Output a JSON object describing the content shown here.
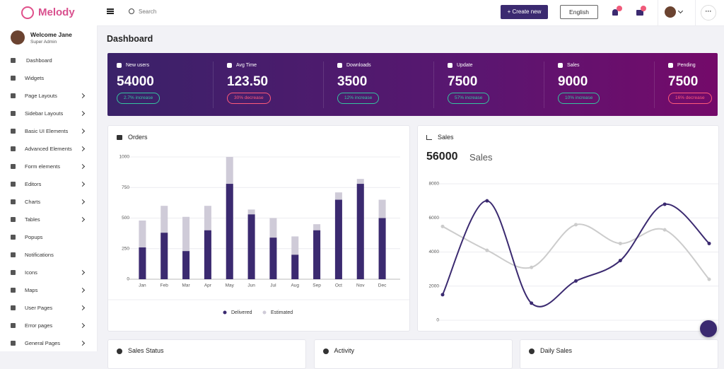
{
  "brand": "Melody",
  "topbar": {
    "search": "Search",
    "create": "+ Create new",
    "language": "English"
  },
  "user": {
    "greeting": "Welcome Jane",
    "role": "Super Admin"
  },
  "menu": [
    {
      "label": "Dashboard",
      "arrow": false
    },
    {
      "label": "Widgets",
      "arrow": false
    },
    {
      "label": "Page Layouts",
      "arrow": true
    },
    {
      "label": "Sidebar Layouts",
      "arrow": true
    },
    {
      "label": "Basic UI Elements",
      "arrow": true
    },
    {
      "label": "Advanced Elements",
      "arrow": true
    },
    {
      "label": "Form elements",
      "arrow": true
    },
    {
      "label": "Editors",
      "arrow": true
    },
    {
      "label": "Charts",
      "arrow": true
    },
    {
      "label": "Tables",
      "arrow": true
    },
    {
      "label": "Popups",
      "arrow": false
    },
    {
      "label": "Notifications",
      "arrow": false
    },
    {
      "label": "Icons",
      "arrow": true
    },
    {
      "label": "Maps",
      "arrow": true
    },
    {
      "label": "User Pages",
      "arrow": true
    },
    {
      "label": "Error pages",
      "arrow": true
    },
    {
      "label": "General Pages",
      "arrow": true
    }
  ],
  "page_title": "Dashboard",
  "stats": [
    {
      "label": "New users",
      "value": "54000",
      "change": "2.7% increase",
      "trend": "up"
    },
    {
      "label": "Avg Time",
      "value": "123.50",
      "change": "30% decrease",
      "trend": "down"
    },
    {
      "label": "Downloads",
      "value": "3500",
      "change": "12% increase",
      "trend": "up"
    },
    {
      "label": "Update",
      "value": "7500",
      "change": "57% increase",
      "trend": "up"
    },
    {
      "label": "Sales",
      "value": "9000",
      "change": "10% increase",
      "trend": "up"
    },
    {
      "label": "Pending",
      "value": "7500",
      "change": "16% decrease",
      "trend": "down"
    }
  ],
  "orders_chart": {
    "type": "bar",
    "title": "Orders",
    "categories": [
      "Jan",
      "Feb",
      "Mar",
      "Apr",
      "May",
      "Jun",
      "Jul",
      "Aug",
      "Sep",
      "Oct",
      "Nov",
      "Dec"
    ],
    "series": [
      {
        "name": "Delivered",
        "color": "#3b2a70",
        "values": [
          260,
          380,
          230,
          400,
          780,
          530,
          340,
          200,
          400,
          650,
          780,
          500
        ]
      },
      {
        "name": "Estimated",
        "color": "#cfcbd8",
        "values": [
          480,
          600,
          510,
          600,
          1000,
          570,
          500,
          350,
          450,
          710,
          820,
          650
        ]
      }
    ],
    "ylim": [
      0,
      1000
    ],
    "yticks": [
      0,
      250,
      500,
      750,
      1000
    ],
    "grid": true,
    "legend": "bottom"
  },
  "sales_chart": {
    "type": "line",
    "title": "Sales",
    "total": "56000",
    "total_label": "Sales",
    "categories": [
      null,
      null,
      null,
      null,
      null,
      null,
      null
    ],
    "series": [
      {
        "name": null,
        "color": "#3b2a70",
        "values": [
          1500,
          7000,
          1000,
          2300,
          3500,
          6800,
          4500
        ]
      },
      {
        "name": null,
        "color": "#cccccc",
        "values": [
          5500,
          4100,
          3100,
          5600,
          4500,
          5300,
          2400
        ]
      }
    ],
    "ylim": [
      0,
      8000
    ],
    "yticks": [
      0,
      2000,
      4000,
      6000,
      8000
    ],
    "grid": true
  },
  "bottom_cards": [
    "Sales Status",
    "Activity",
    "Daily Sales"
  ]
}
